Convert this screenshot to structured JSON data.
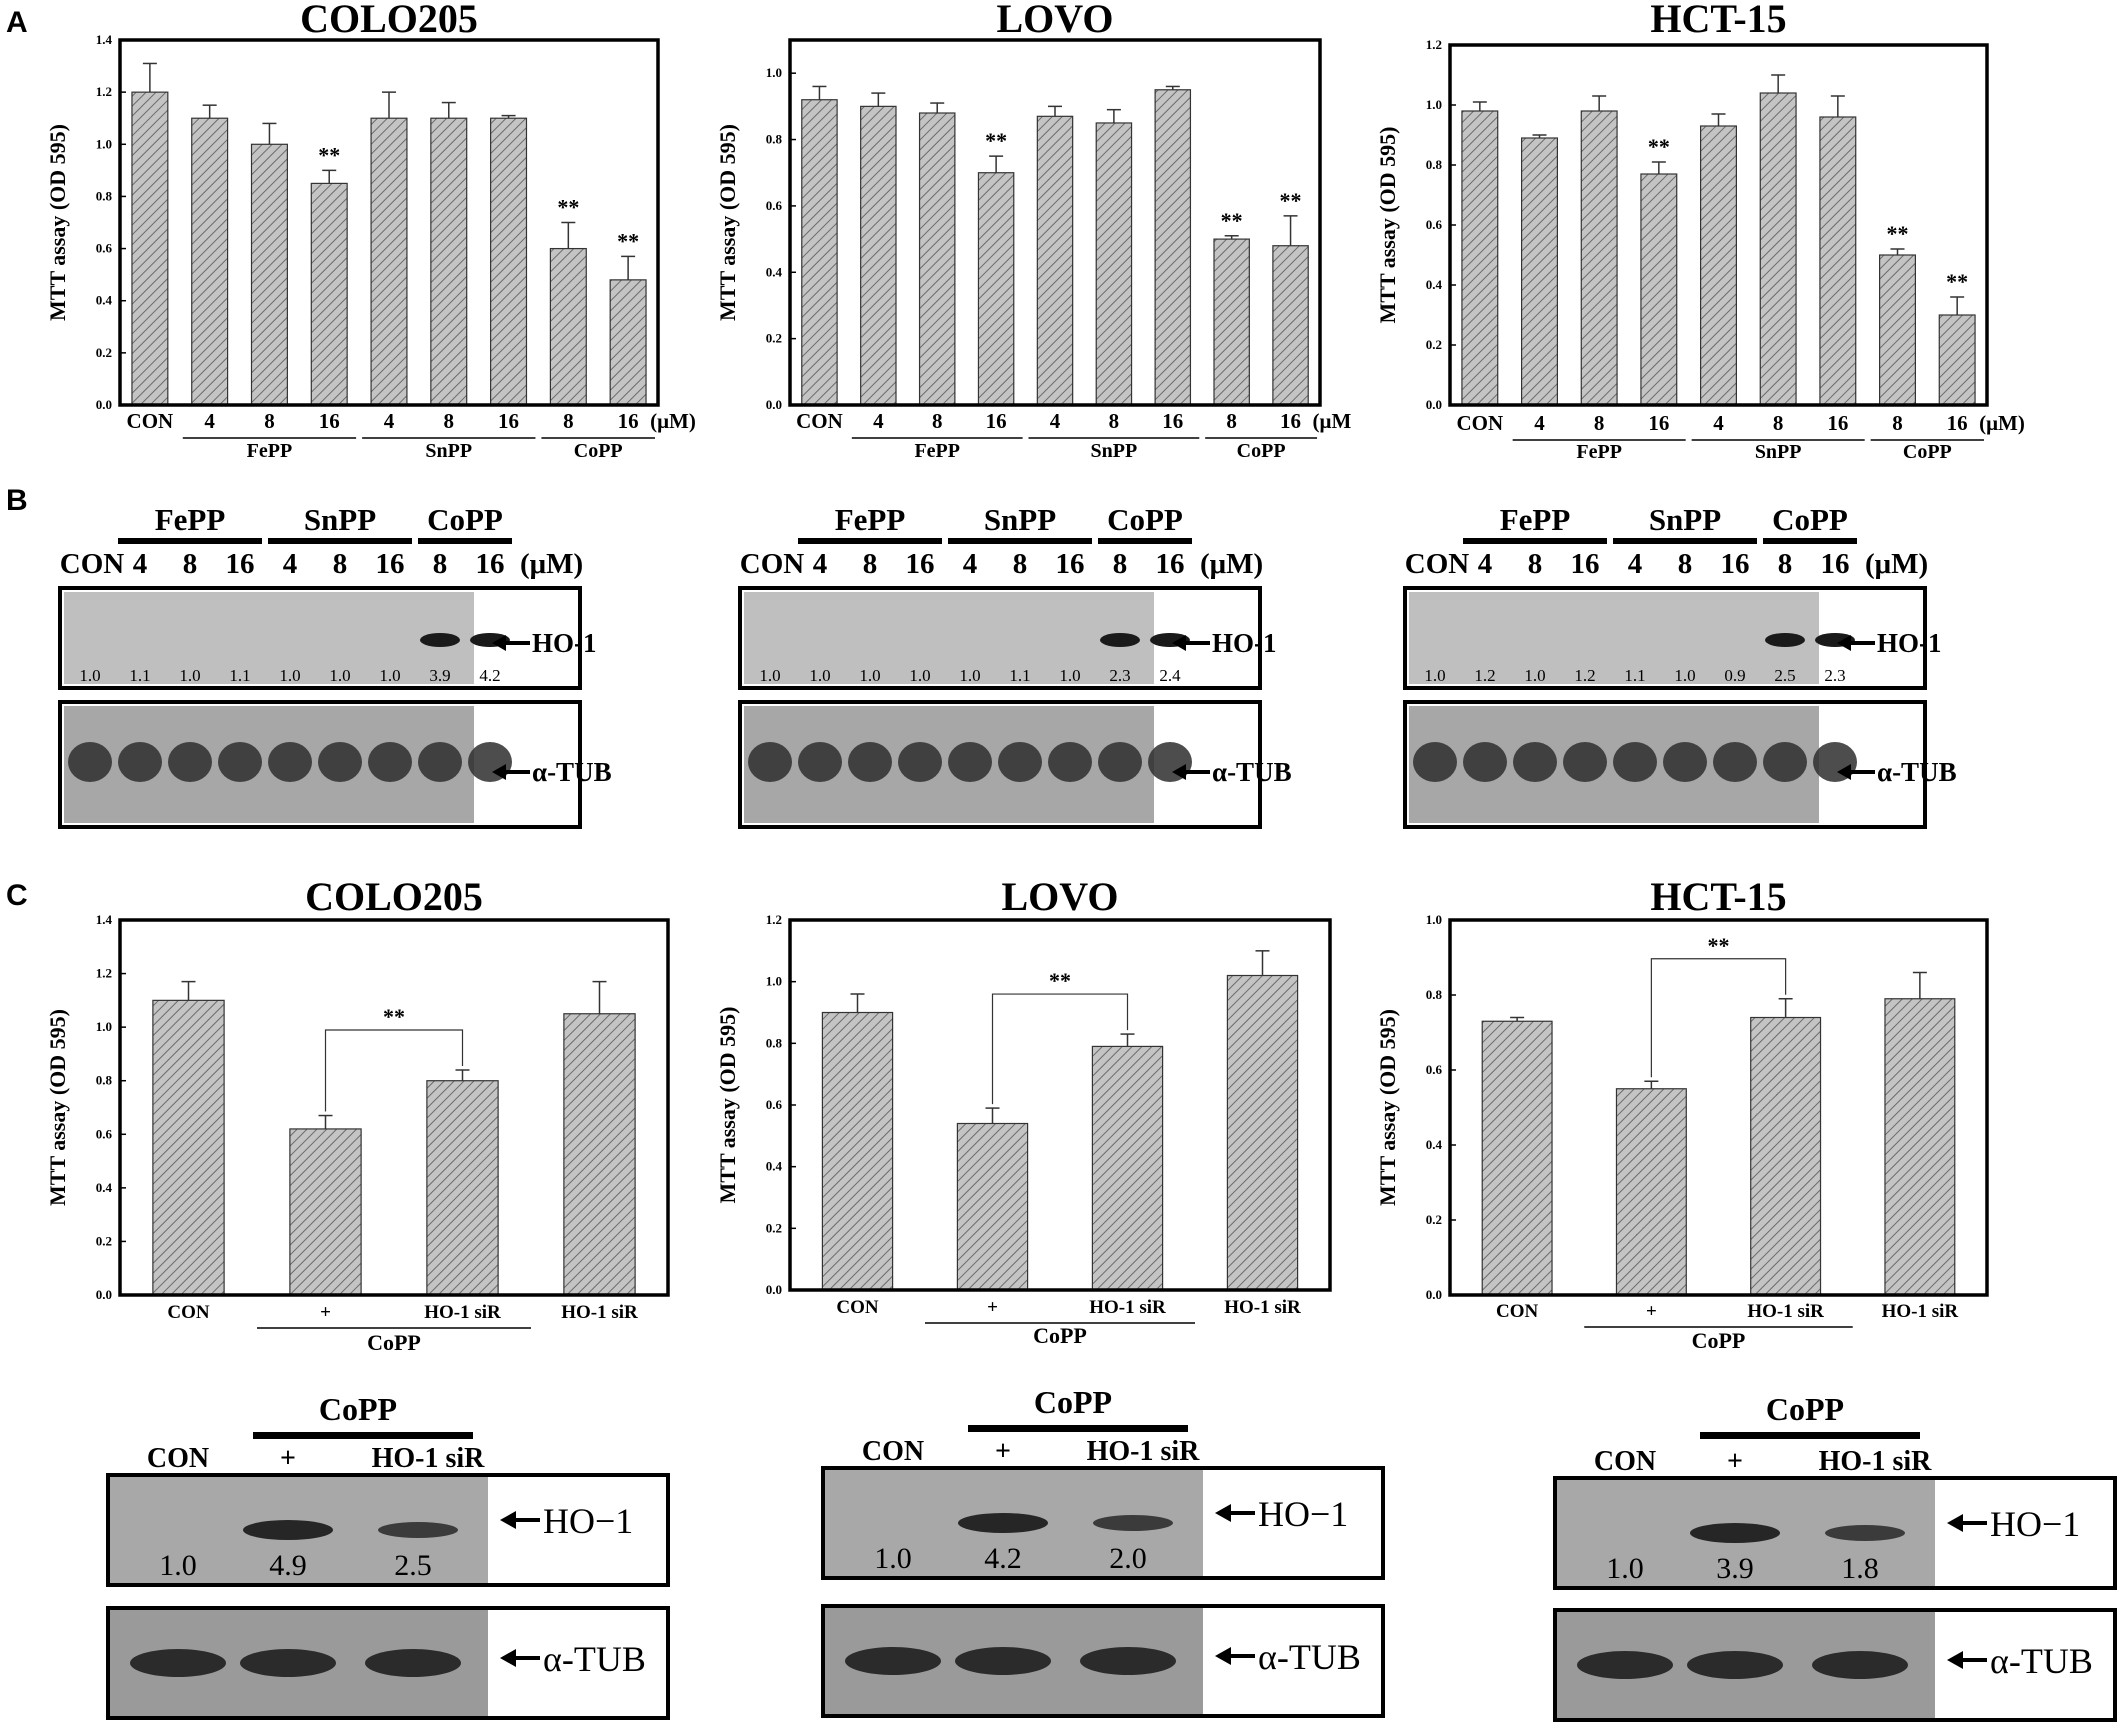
{
  "panel_labels": [
    "A",
    "B",
    "C"
  ],
  "units_label": "(μM)",
  "ylabel": "MTT assay (OD 595)",
  "arrow_labels": {
    "ho1": "HO-1",
    "tub": "α-TUB",
    "ho1c": "HO−1"
  },
  "colors": {
    "bar_fill": "#bdbdbd",
    "bar_stroke": "#333333",
    "axis": "#000000"
  },
  "chart_data": [
    {
      "panel": "A",
      "type": "bar",
      "title": "COLO205",
      "ylabel": "MTT assay (OD 595)",
      "ylim": [
        0,
        1.4
      ],
      "yticks": [
        "0.0",
        "0.2",
        "0.4",
        "0.6",
        "0.8",
        "1.0",
        "1.2",
        "1.4"
      ],
      "categories": [
        "CON",
        "4",
        "8",
        "16",
        "4",
        "8",
        "16",
        "8",
        "16"
      ],
      "values": [
        1.2,
        1.1,
        1.0,
        0.85,
        1.1,
        1.1,
        1.1,
        0.6,
        0.48
      ],
      "errors": [
        0.11,
        0.05,
        0.08,
        0.05,
        0.1,
        0.06,
        0.01,
        0.1,
        0.09
      ],
      "significance": [
        "",
        "",
        "",
        "**",
        "",
        "",
        "",
        "**",
        "**"
      ],
      "groups": [
        {
          "label": "FePP",
          "from": 1,
          "to": 3
        },
        {
          "label": "SnPP",
          "from": 4,
          "to": 6
        },
        {
          "label": "CoPP",
          "from": 7,
          "to": 8
        }
      ],
      "unit": "(μM)"
    },
    {
      "panel": "A",
      "type": "bar",
      "title": "LOVO",
      "ylabel": "MTT assay (OD 595)",
      "ylim": [
        0,
        1.1
      ],
      "yticks": [
        "0.0",
        "0.2",
        "0.4",
        "0.6",
        "0.8",
        "1.0"
      ],
      "categories": [
        "CON",
        "4",
        "8",
        "16",
        "4",
        "8",
        "16",
        "8",
        "16"
      ],
      "values": [
        0.92,
        0.9,
        0.88,
        0.7,
        0.87,
        0.85,
        0.95,
        0.5,
        0.48
      ],
      "errors": [
        0.04,
        0.04,
        0.03,
        0.05,
        0.03,
        0.04,
        0.01,
        0.01,
        0.09
      ],
      "significance": [
        "",
        "",
        "",
        "**",
        "",
        "",
        "",
        "**",
        "**"
      ],
      "groups": [
        {
          "label": "FePP",
          "from": 1,
          "to": 3
        },
        {
          "label": "SnPP",
          "from": 4,
          "to": 6
        },
        {
          "label": "CoPP",
          "from": 7,
          "to": 8
        }
      ],
      "unit": "(μM"
    },
    {
      "panel": "A",
      "type": "bar",
      "title": "HCT-15",
      "ylabel": "MTT assay (OD 595)",
      "ylim": [
        0,
        1.2
      ],
      "yticks": [
        "0.0",
        "0.2",
        "0.4",
        "0.6",
        "0.8",
        "1.0",
        "1.2"
      ],
      "categories": [
        "CON",
        "4",
        "8",
        "16",
        "4",
        "8",
        "16",
        "8",
        "16"
      ],
      "values": [
        0.98,
        0.89,
        0.98,
        0.77,
        0.93,
        1.04,
        0.96,
        0.5,
        0.3
      ],
      "errors": [
        0.03,
        0.01,
        0.05,
        0.04,
        0.04,
        0.06,
        0.07,
        0.02,
        0.06
      ],
      "significance": [
        "",
        "",
        "",
        "**",
        "",
        "",
        "",
        "**",
        "**"
      ],
      "groups": [
        {
          "label": "FePP",
          "from": 1,
          "to": 3
        },
        {
          "label": "SnPP",
          "from": 4,
          "to": 6
        },
        {
          "label": "CoPP",
          "from": 7,
          "to": 8
        }
      ],
      "unit": "(μM)"
    },
    {
      "panel": "C",
      "type": "bar",
      "title": "COLO205",
      "ylabel": "MTT assay (OD 595)",
      "ylim": [
        0,
        1.4
      ],
      "yticks": [
        "0.0",
        "0.2",
        "0.4",
        "0.6",
        "0.8",
        "1.0",
        "1.2",
        "1.4"
      ],
      "categories": [
        "CON",
        "+",
        "HO-1 siR",
        "HO-1 siR"
      ],
      "values": [
        1.1,
        0.62,
        0.8,
        1.05
      ],
      "errors": [
        0.07,
        0.05,
        0.04,
        0.12
      ],
      "significance_bracket": {
        "from": 1,
        "to": 2,
        "label": "**"
      },
      "group": {
        "label": "CoPP",
        "from": 1,
        "to": 2
      }
    },
    {
      "panel": "C",
      "type": "bar",
      "title": "LOVO",
      "ylabel": "MTT assay (OD 595)",
      "ylim": [
        0,
        1.2
      ],
      "yticks": [
        "0.0",
        "0.2",
        "0.4",
        "0.6",
        "0.8",
        "1.0",
        "1.2"
      ],
      "categories": [
        "CON",
        "+",
        "HO-1 siR",
        "HO-1 siR"
      ],
      "values": [
        0.9,
        0.54,
        0.79,
        1.02
      ],
      "errors": [
        0.06,
        0.05,
        0.04,
        0.08
      ],
      "significance_bracket": {
        "from": 1,
        "to": 2,
        "label": "**"
      },
      "group": {
        "label": "CoPP",
        "from": 1,
        "to": 2
      }
    },
    {
      "panel": "C",
      "type": "bar",
      "title": "HCT-15",
      "ylabel": "MTT assay (OD 595)",
      "ylim": [
        0,
        1.0
      ],
      "yticks": [
        "0.0",
        "0.2",
        "0.4",
        "0.6",
        "0.8",
        "1.0"
      ],
      "categories": [
        "CON",
        "+",
        "HO-1 siR",
        "HO-1 siR"
      ],
      "values": [
        0.73,
        0.55,
        0.74,
        0.79
      ],
      "errors": [
        0.01,
        0.02,
        0.05,
        0.07
      ],
      "significance_bracket": {
        "from": 1,
        "to": 2,
        "label": "**"
      },
      "group": {
        "label": "CoPP",
        "from": 1,
        "to": 2
      }
    }
  ],
  "blots_b": [
    {
      "header_groups": [
        "FePP",
        "SnPP",
        "CoPP"
      ],
      "lanes": [
        "CON",
        "4",
        "8",
        "16",
        "4",
        "8",
        "16",
        "8",
        "16",
        "(μM)"
      ],
      "ho1_quant": [
        "1.0",
        "1.1",
        "1.0",
        "1.1",
        "1.0",
        "1.0",
        "1.0",
        "3.9",
        "4.2"
      ]
    },
    {
      "header_groups": [
        "FePP",
        "SnPP",
        "CoPP"
      ],
      "lanes": [
        "CON",
        "4",
        "8",
        "16",
        "4",
        "8",
        "16",
        "8",
        "16",
        "(μM)"
      ],
      "ho1_quant": [
        "1.0",
        "1.0",
        "1.0",
        "1.0",
        "1.0",
        "1.1",
        "1.0",
        "2.3",
        "2.4"
      ]
    },
    {
      "header_groups": [
        "FePP",
        "SnPP",
        "CoPP"
      ],
      "lanes": [
        "CON",
        "4",
        "8",
        "16",
        "4",
        "8",
        "16",
        "8",
        "16",
        "(μM)"
      ],
      "ho1_quant": [
        "1.0",
        "1.2",
        "1.0",
        "1.2",
        "1.1",
        "1.0",
        "0.9",
        "2.5",
        "2.3"
      ]
    }
  ],
  "blots_c": [
    {
      "header": "CoPP",
      "lanes": [
        "CON",
        "+",
        "HO-1 siR"
      ],
      "ho1_quant": [
        "1.0",
        "4.9",
        "2.5"
      ]
    },
    {
      "header": "CoPP",
      "lanes": [
        "CON",
        "+",
        "HO-1 siR"
      ],
      "ho1_quant": [
        "1.0",
        "4.2",
        "2.0"
      ]
    },
    {
      "header": "CoPP",
      "lanes": [
        "CON",
        "+",
        "HO-1 siR"
      ],
      "ho1_quant": [
        "1.0",
        "3.9",
        "1.8"
      ]
    }
  ]
}
